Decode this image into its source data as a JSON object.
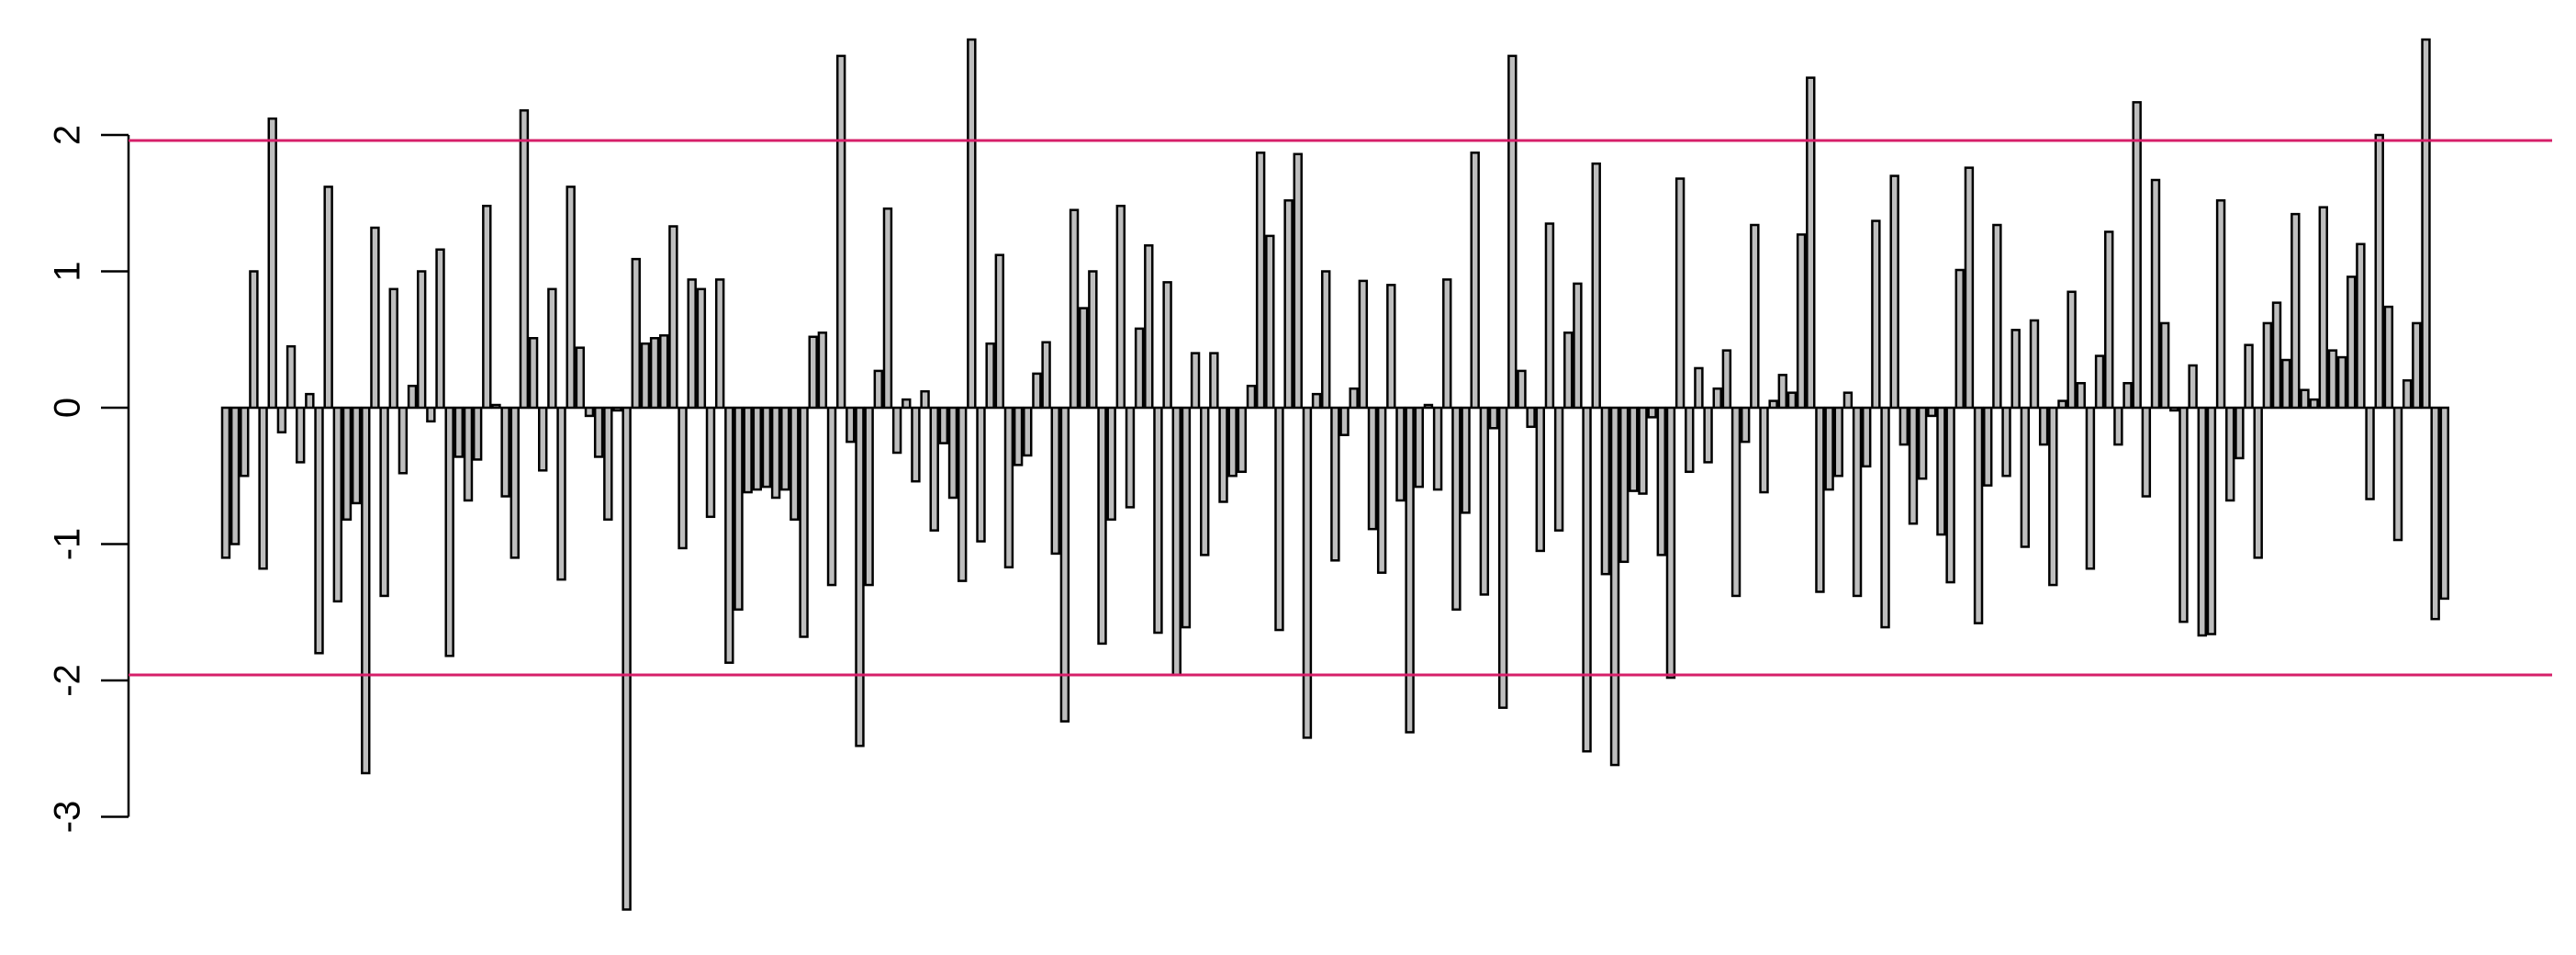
{
  "chart_data": {
    "type": "bar",
    "title": "",
    "xlabel": "",
    "ylabel": "",
    "ylim": [
      -3.65,
      2.7
    ],
    "y_ticks": [
      -3,
      -2,
      -1,
      0,
      1,
      2
    ],
    "y_tick_labels": [
      "-3",
      "-2",
      "-1",
      "0",
      "1",
      "2"
    ],
    "bar_color": "#bebebe",
    "bar_border_color": "#000000",
    "reference_lines": [
      {
        "y": 1.96,
        "color": "#d61f69"
      },
      {
        "y": -1.96,
        "color": "#d61f69"
      }
    ],
    "values": [
      -1.1,
      -1.0,
      -0.5,
      1.0,
      -1.18,
      2.12,
      -0.18,
      0.45,
      -0.4,
      0.1,
      -1.8,
      1.62,
      -1.42,
      -0.82,
      -0.7,
      -2.68,
      1.32,
      -1.38,
      0.87,
      -0.48,
      0.16,
      1.0,
      -0.1,
      1.16,
      -1.82,
      -0.36,
      -0.68,
      -0.38,
      1.48,
      0.02,
      -0.65,
      -1.1,
      2.18,
      0.51,
      -0.46,
      0.87,
      -1.26,
      1.62,
      0.44,
      -0.06,
      -0.36,
      -0.82,
      -0.02,
      -3.68,
      1.09,
      0.47,
      0.51,
      0.53,
      1.33,
      -1.03,
      0.94,
      0.87,
      -0.8,
      0.94,
      -1.87,
      -1.48,
      -0.62,
      -0.6,
      -0.58,
      -0.66,
      -0.6,
      -0.82,
      -1.68,
      0.52,
      0.55,
      -1.3,
      2.58,
      -0.25,
      -2.48,
      -1.3,
      0.27,
      1.46,
      -0.33,
      0.06,
      -0.54,
      0.12,
      -0.9,
      -0.26,
      -0.66,
      -1.27,
      2.7,
      -0.98,
      0.47,
      1.12,
      -1.17,
      -0.42,
      -0.35,
      0.25,
      0.48,
      -1.07,
      -2.3,
      1.45,
      0.73,
      1.0,
      -1.73,
      -0.82,
      1.48,
      -0.73,
      0.58,
      1.19,
      -1.65,
      0.92,
      -1.96,
      -1.61,
      0.4,
      -1.08,
      0.4,
      -0.69,
      -0.5,
      -0.47,
      0.16,
      1.87,
      1.26,
      -1.63,
      1.52,
      1.86,
      -2.42,
      0.1,
      1.0,
      -1.12,
      -0.2,
      0.14,
      0.93,
      -0.89,
      -1.21,
      0.9,
      -0.68,
      -2.38,
      -0.58,
      0.02,
      -0.6,
      0.94,
      -1.48,
      -0.77,
      1.87,
      -1.37,
      -0.15,
      -2.2,
      2.58,
      0.27,
      -0.14,
      -1.05,
      1.35,
      -0.9,
      0.55,
      0.91,
      -2.52,
      1.79,
      -1.22,
      -2.62,
      -1.13,
      -0.61,
      -0.63,
      -0.07,
      -1.08,
      -1.98,
      1.68,
      -0.47,
      0.29,
      -0.4,
      0.14,
      0.42,
      -1.38,
      -0.25,
      1.34,
      -0.62,
      0.05,
      0.24,
      0.11,
      1.27,
      2.42,
      -1.35,
      -0.6,
      -0.5,
      0.11,
      -1.38,
      -0.43,
      1.37,
      -1.61,
      1.7,
      -0.27,
      -0.85,
      -0.52,
      -0.06,
      -0.93,
      -1.28,
      1.01,
      1.76,
      -1.58,
      -0.57,
      1.34,
      -0.5,
      0.57,
      -1.02,
      0.64,
      -0.27,
      -1.3,
      0.05,
      0.85,
      0.18,
      -1.18,
      0.38,
      1.29,
      -0.27,
      0.18,
      2.24,
      -0.65,
      1.67,
      0.62,
      -0.02,
      -1.57,
      0.31,
      -1.67,
      -1.66,
      1.52,
      -0.68,
      -0.37,
      0.46,
      -1.1,
      0.62,
      0.77,
      0.35,
      1.42,
      0.13,
      0.06,
      1.47,
      0.42,
      0.37,
      0.96,
      1.2,
      -0.67,
      2.0,
      0.74,
      -0.97,
      0.2,
      0.62,
      2.7,
      -1.55,
      -1.4
    ]
  }
}
